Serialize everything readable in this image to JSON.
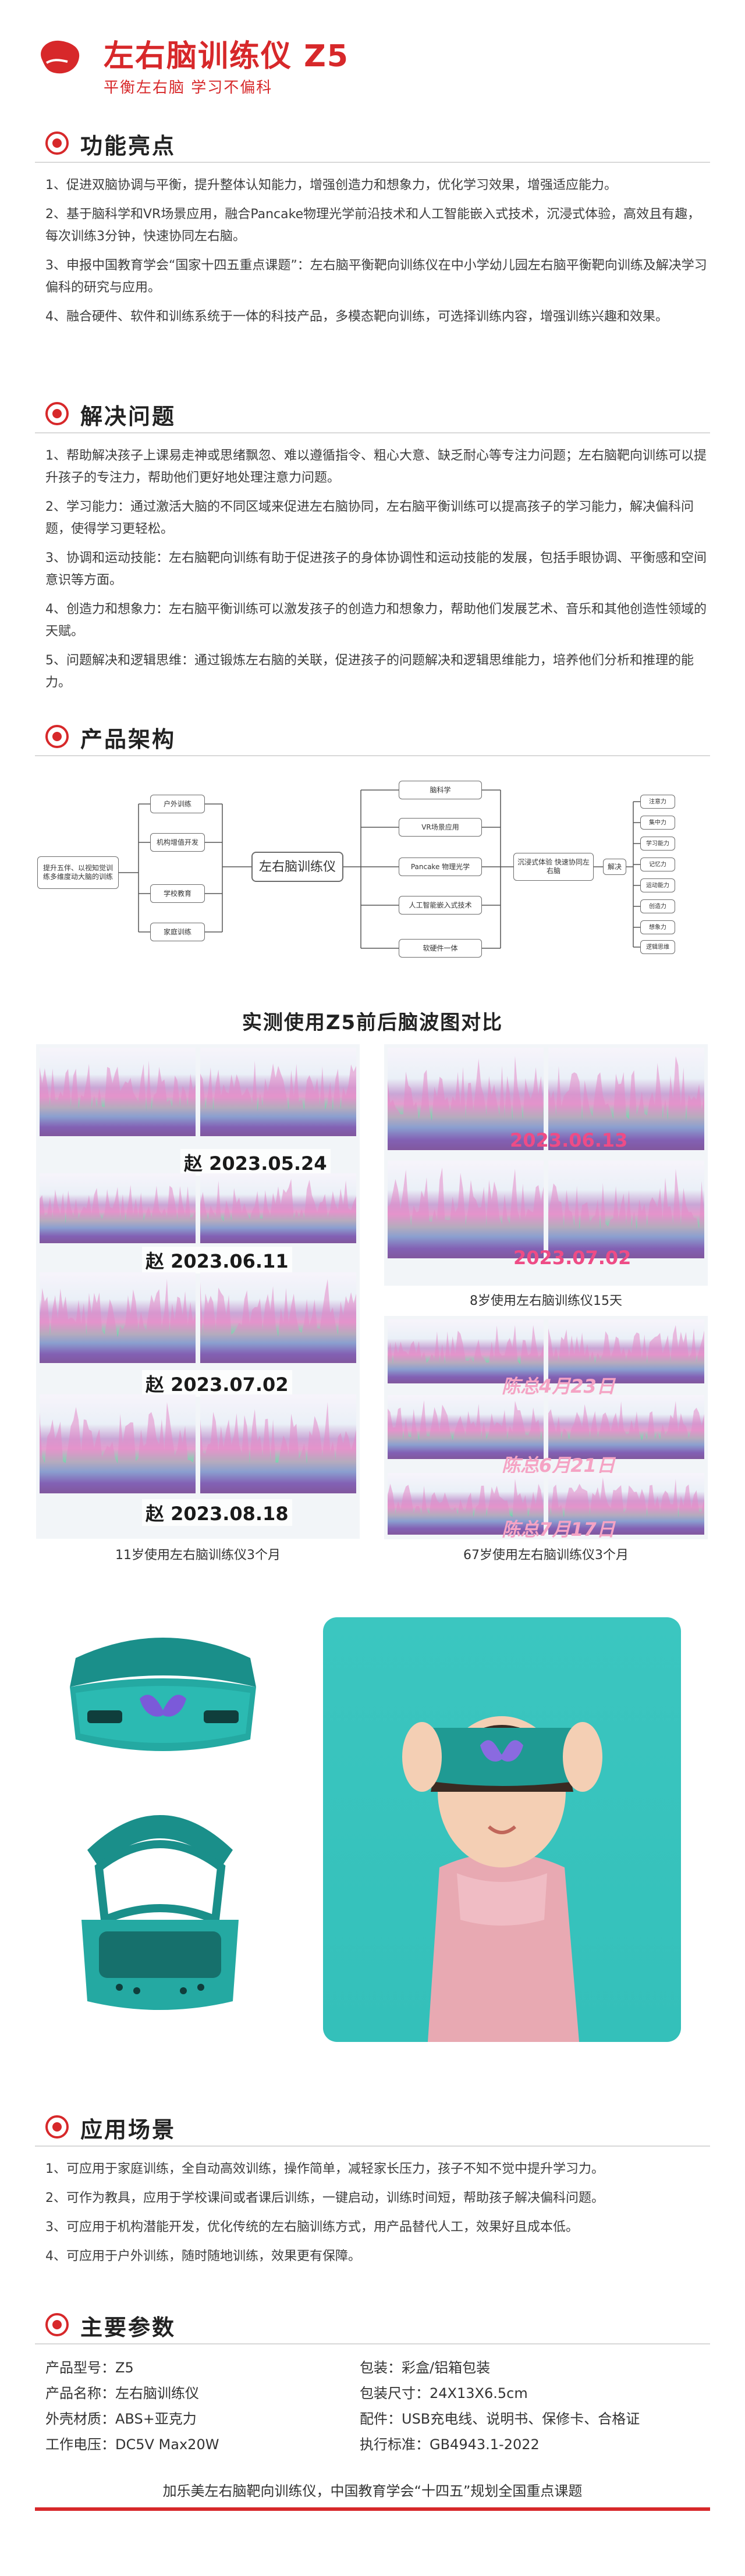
{
  "header": {
    "title": "左右脑训练仪 Z5",
    "subtitle": "平衡左右脑 学习不偏科",
    "brand_color": "#d7282a"
  },
  "features": {
    "title": "功能亮点",
    "items": [
      "1、促进双脑协调与平衡，提升整体认知能力，增强创造力和想象力，优化学习效果，增强适应能力。",
      "2、基于脑科学和VR场景应用，融合Pancake物理光学前沿技术和人工智能嵌入式技术，沉浸式体验，高效且有趣，每次训练3分钟，快速协同左右脑。",
      "3、申报中国教育学会“国家十四五重点课题”：左右脑平衡靶向训练仪在中小学幼儿园左右脑平衡靶向训练及解决学习偏科的研究与应用。",
      "4、融合硬件、软件和训练系统于一体的科技产品，多模态靶向训练，可选择训练内容，增强训练兴趣和效果。"
    ]
  },
  "problems": {
    "title": "解决问题",
    "items": [
      "1、帮助解决孩子上课易走神或思绪飘忽、难以遵循指令、粗心大意、缺乏耐心等专注力问题；左右脑靶向训练可以提升孩子的专注力，帮助他们更好地处理注意力问题。",
      "2、学习能力：通过激活大脑的不同区域来促进左右脑协同，左右脑平衡训练可以提高孩子的学习能力，解决偏科问题，使得学习更轻松。",
      "3、协调和运动技能：左右脑靶向训练有助于促进孩子的身体协调性和运动技能的发展，包括手眼协调、平衡感和空间意识等方面。",
      "4、创造力和想象力：左右脑平衡训练可以激发孩子的创造力和想象力，帮助他们发展艺术、音乐和其他创造性领域的天赋。",
      "5、问题解决和逻辑思维：通过锻炼左右脑的关联，促进孩子的问题解决和逻辑思维能力，培养他们分析和推理的能力。"
    ]
  },
  "architecture": {
    "title": "产品架构",
    "left_box": "提升五伴、以视知觉训练多维度动大脑的训练",
    "channels": [
      "户外训练",
      "机构增值开发",
      "学校教育",
      "家庭训练"
    ],
    "center": "左右脑训练仪",
    "tech": [
      "脑科学",
      "VR场景应用",
      "Pancake 物理光学",
      "人工智能嵌入式技术",
      "软硬件一体"
    ],
    "effect_box": "沉浸式体验 快速协同左右脑",
    "effect_label": "解决",
    "outcomes": [
      "注意力",
      "集中力",
      "学习能力",
      "记忆力",
      "运动能力",
      "创造力",
      "想象力",
      "逻辑思维"
    ]
  },
  "brainwave": {
    "title": "实测使用Z5前后脑波图对比",
    "left_dates": [
      "赵 2023.05.24",
      "赵 2023.06.11",
      "赵 2023.07.02",
      "赵 2023.08.18"
    ],
    "left_caption": "11岁使用左右脑训练仪3个月",
    "right_top_dates": [
      "2023.06.13",
      "2023.07.02"
    ],
    "right_top_caption": "8岁使用左右脑训练仪15天",
    "right_bottom_dates": [
      "陈总4月23日",
      "陈总6月21日",
      "陈总7月17日"
    ],
    "right_bottom_caption": "67岁使用左右脑训练仪3个月"
  },
  "scenarios": {
    "title": "应用场景",
    "items": [
      "1、可应用于家庭训练，全自动高效训练，操作简单，减轻家长压力，孩子不知不觉中提升学习力。",
      "2、可作为教具，应用于学校课间或者课后训练，一键启动，训练时间短，帮助孩子解决偏科问题。",
      "3、可应用于机构潜能开发，优化传统的左右脑训练方式，用产品替代人工，效果好且成本低。",
      "4、可应用于户外训练，随时随地训练，效果更有保障。"
    ]
  },
  "params": {
    "title": "主要参数",
    "left": [
      "产品型号：Z5",
      "产品名称：左右脑训练仪",
      "外壳材质：ABS+亚克力",
      "工作电压：DC5V Max20W"
    ],
    "right": [
      "包装：彩盒/铝箱包装",
      "包装尺寸：24X13X6.5cm",
      "配件：USB充电线、说明书、保修卡、合格证",
      "执行标准：GB4943.1-2022"
    ]
  },
  "footer": {
    "text": "加乐美左右脑靶向训练仪，中国教育学会“十四五”规划全国重点课题"
  }
}
